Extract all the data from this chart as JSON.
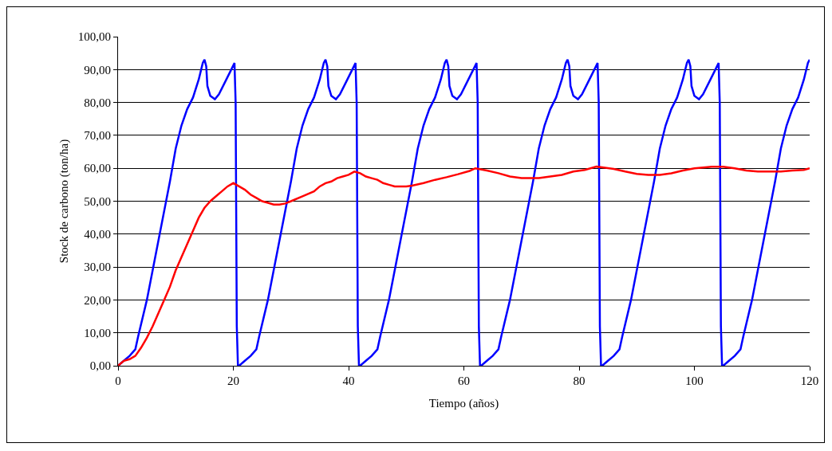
{
  "chart_data": {
    "type": "line",
    "xlabel": "Tiempo (años)",
    "ylabel": "Stock de carbono (ton/ha)",
    "xlim": [
      0,
      120
    ],
    "xticks": [
      0,
      20,
      40,
      60,
      80,
      100,
      120
    ],
    "ylim": [
      0,
      100
    ],
    "yticks": [
      {
        "value": 0,
        "label": "0,00"
      },
      {
        "value": 10,
        "label": "10,00"
      },
      {
        "value": 20,
        "label": "20,00"
      },
      {
        "value": 30,
        "label": "30,00"
      },
      {
        "value": 40,
        "label": "40,00"
      },
      {
        "value": 50,
        "label": "50,00"
      },
      {
        "value": 60,
        "label": "60,00"
      },
      {
        "value": 70,
        "label": "70,00"
      },
      {
        "value": 80,
        "label": "80,00"
      },
      {
        "value": 90,
        "label": "90,00"
      },
      {
        "value": 100,
        "label": "100,00"
      }
    ],
    "grid": "y",
    "marker": "none",
    "line_style": "solid",
    "series": [
      {
        "color": "#0000ff",
        "x": [
          0,
          1,
          2,
          3,
          3.5,
          5,
          7,
          9,
          10,
          11,
          12,
          13,
          14,
          14.7,
          15,
          15.3,
          15.5,
          16,
          16.8,
          17.5,
          18.5,
          19.5,
          20.2,
          20.4,
          20.6,
          20.8,
          21,
          22,
          23,
          24,
          24.5,
          26,
          28,
          30,
          31,
          32,
          33,
          34,
          35,
          35.7,
          36,
          36.3,
          36.5,
          37,
          37.8,
          38.5,
          39.5,
          40.5,
          41.2,
          41.4,
          41.6,
          41.8,
          42,
          43,
          44,
          45,
          45.5,
          47,
          49,
          51,
          52,
          53,
          54,
          55,
          56,
          56.7,
          57,
          57.3,
          57.5,
          58,
          58.8,
          59.5,
          60.5,
          61.5,
          62.2,
          62.4,
          62.6,
          62.8,
          63,
          64,
          65,
          66,
          66.5,
          68,
          70,
          72,
          73,
          74,
          75,
          76,
          77,
          77.7,
          78,
          78.3,
          78.5,
          79,
          79.8,
          80.5,
          81.5,
          82.5,
          83.2,
          83.4,
          83.6,
          83.8,
          84,
          85,
          86,
          87,
          87.5,
          89,
          91,
          93,
          94,
          95,
          96,
          97,
          98,
          98.7,
          99,
          99.3,
          99.5,
          100,
          100.8,
          101.5,
          102.5,
          103.5,
          104.2,
          104.4,
          104.6,
          104.8,
          105,
          106,
          107,
          108,
          108.5,
          110,
          112,
          114,
          115,
          116,
          117,
          118,
          119,
          119.7,
          120
        ],
        "values": [
          0,
          1.5,
          3,
          5,
          9,
          20,
          38,
          56,
          66,
          73,
          78,
          81.5,
          87,
          92,
          93,
          91,
          85,
          82,
          81,
          82.5,
          86,
          89.5,
          92,
          80,
          12,
          0,
          0,
          1.5,
          3,
          5,
          9,
          20,
          38,
          56,
          66,
          73,
          78,
          81.5,
          87,
          92,
          93,
          91,
          85,
          82,
          81,
          82.5,
          86,
          89.5,
          92,
          80,
          12,
          0,
          0,
          1.5,
          3,
          5,
          9,
          20,
          38,
          56,
          66,
          73,
          78,
          81.5,
          87,
          92,
          93,
          91,
          85,
          82,
          81,
          82.5,
          86,
          89.5,
          92,
          80,
          12,
          0,
          0,
          1.5,
          3,
          5,
          9,
          20,
          38,
          56,
          66,
          73,
          78,
          81.5,
          87,
          92,
          93,
          91,
          85,
          82,
          81,
          82.5,
          86,
          89.5,
          92,
          80,
          12,
          0,
          0,
          1.5,
          3,
          5,
          9,
          20,
          38,
          56,
          66,
          73,
          78,
          81.5,
          87,
          92,
          93,
          91,
          85,
          82,
          81,
          82.5,
          86,
          89.5,
          92,
          80,
          12,
          0,
          0,
          1.5,
          3,
          5,
          9,
          20,
          38,
          56,
          66,
          73,
          78,
          81.5,
          87,
          92,
          93
        ]
      },
      {
        "color": "#ff0000",
        "x": [
          0,
          1,
          2,
          3,
          4,
          5,
          6,
          7,
          8,
          9,
          10,
          11,
          12,
          13,
          14,
          15,
          16,
          17,
          18,
          19,
          20,
          21,
          22,
          23,
          24,
          25,
          26,
          27,
          28,
          29,
          30,
          32,
          34,
          35,
          36,
          37,
          38,
          39,
          40,
          41,
          42,
          43,
          44,
          45,
          46,
          47,
          48,
          50,
          51,
          53,
          55,
          57,
          59,
          61,
          62,
          64,
          66,
          68,
          70,
          73,
          75,
          77,
          79,
          81,
          83,
          84,
          86,
          88,
          90,
          92,
          94,
          96,
          98,
          100,
          103,
          105,
          107,
          109,
          111,
          115,
          117,
          119,
          120
        ],
        "values": [
          0,
          1.5,
          2,
          3,
          5.5,
          8.5,
          12,
          16,
          20,
          24,
          29,
          33,
          37,
          41,
          45,
          48,
          50,
          51.5,
          53,
          54.5,
          55.5,
          54.5,
          53.5,
          52,
          51,
          50,
          49.5,
          49,
          49,
          49.3,
          50,
          51.5,
          53,
          54.5,
          55.5,
          56,
          57,
          57.5,
          58,
          59,
          58.5,
          57.5,
          57,
          56.5,
          55.5,
          55,
          54.5,
          54.5,
          54.7,
          55.5,
          56.5,
          57.3,
          58.2,
          59.2,
          60,
          59.3,
          58.5,
          57.5,
          57,
          57,
          57.5,
          58,
          59,
          59.5,
          60.5,
          60.3,
          59.8,
          59,
          58.3,
          58,
          58,
          58.5,
          59.3,
          60,
          60.5,
          60.5,
          60,
          59.3,
          59,
          59,
          59.3,
          59.5,
          60
        ]
      }
    ]
  }
}
